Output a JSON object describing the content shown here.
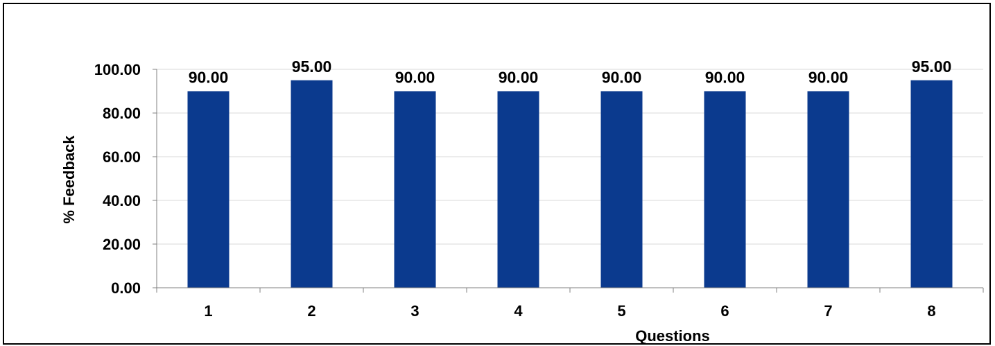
{
  "chart_data": {
    "type": "bar",
    "categories": [
      "1",
      "2",
      "3",
      "4",
      "5",
      "6",
      "7",
      "8"
    ],
    "values": [
      90.0,
      95.0,
      90.0,
      90.0,
      90.0,
      90.0,
      90.0,
      95.0
    ],
    "data_labels": [
      "90.00",
      "95.00",
      "90.00",
      "90.00",
      "90.00",
      "90.00",
      "90.00",
      "95.00"
    ],
    "y_tick_labels": [
      "0.00",
      "20.00",
      "40.00",
      "60.00",
      "80.00",
      "100.00"
    ],
    "y_ticks": [
      0,
      20,
      40,
      60,
      80,
      100
    ],
    "xlabel": "Questions",
    "ylabel": "% Feedback",
    "ylim": [
      0,
      100
    ],
    "grid": true,
    "legend": "none",
    "bar_color": "#0B3A8E",
    "gridline_color": "#D9D9D9",
    "axis_color": "#808080"
  }
}
